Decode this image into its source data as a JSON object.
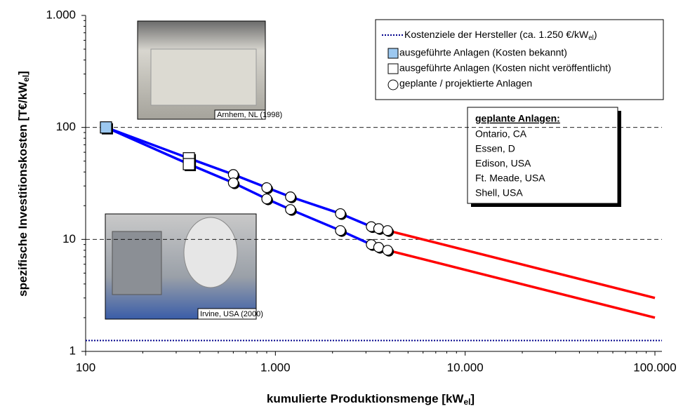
{
  "chart_data": {
    "type": "line",
    "log_x": true,
    "log_y": true,
    "xlabel": [
      "kumulierte Produktionsmenge [kW",
      "el",
      "]"
    ],
    "ylabel": [
      "spezifische Investitionskosten [T€/kW",
      "el",
      "]"
    ],
    "xlim": [
      100,
      100000
    ],
    "ylim": [
      1,
      1000
    ],
    "xticks": [
      100,
      {
        "value": 1000,
        "label": "1.000"
      },
      {
        "value": 10000,
        "label": "10.000"
      },
      {
        "value": 100000,
        "label": "100.000"
      }
    ],
    "yticks": [
      1,
      10,
      100,
      {
        "value": 1000,
        "label": "1.000"
      }
    ],
    "grid": true,
    "lines": [
      {
        "color": "#0000ff",
        "x": [
          128,
          350,
          600,
          900,
          1200,
          2200,
          3200,
          3500,
          3900
        ],
        "values": [
          100,
          53,
          38,
          29,
          24,
          17,
          13,
          12.5,
          12
        ]
      },
      {
        "color": "#0000ff",
        "x": [
          128,
          350,
          600,
          900,
          1200,
          2200,
          3200,
          3500,
          3900
        ],
        "values": [
          100,
          47,
          32,
          23,
          18.5,
          12,
          9,
          8.5,
          8
        ]
      },
      {
        "color": "#ff0000",
        "x": [
          3900,
          100000
        ],
        "values": [
          12,
          3
        ]
      },
      {
        "color": "#ff0000",
        "x": [
          3900,
          100000
        ],
        "values": [
          8,
          2
        ]
      }
    ],
    "reference_line": {
      "name": [
        "Kostenziele der Hersteller (ca. 1.250 €/kW",
        "el",
        ")"
      ],
      "value": 1.25,
      "color": "#00008b"
    },
    "markers": [
      {
        "name": "ausgeführte Anlagen (Kosten bekannt)",
        "shape": "square",
        "color": "#9cc8f0",
        "x": [
          128
        ],
        "values": [
          100
        ]
      },
      {
        "name": "ausgeführte Anlagen (Kosten nicht veröffentlicht)",
        "shape": "square",
        "color": "#ffffff",
        "x": [
          350,
          350
        ],
        "values": [
          53,
          47
        ]
      },
      {
        "name": "geplante / projektierte Anlagen",
        "shape": "circle",
        "color": "#ffffff",
        "x": [
          600,
          900,
          1200,
          2200,
          3200,
          3500,
          3900,
          600,
          900,
          1200,
          2200,
          3200,
          3500,
          3900
        ],
        "values": [
          38,
          29,
          24,
          17,
          13,
          12.5,
          12,
          32,
          23,
          18.5,
          12,
          9,
          8.5,
          8
        ]
      }
    ],
    "photos": [
      "Arnhem, NL (1998)",
      "Irvine, USA (2000)"
    ],
    "info_box": {
      "title": "geplante Anlagen:",
      "items": [
        "Ontario, CA",
        "Essen, D",
        "Edison, USA",
        "Ft. Meade, USA",
        "Shell, USA"
      ]
    }
  }
}
